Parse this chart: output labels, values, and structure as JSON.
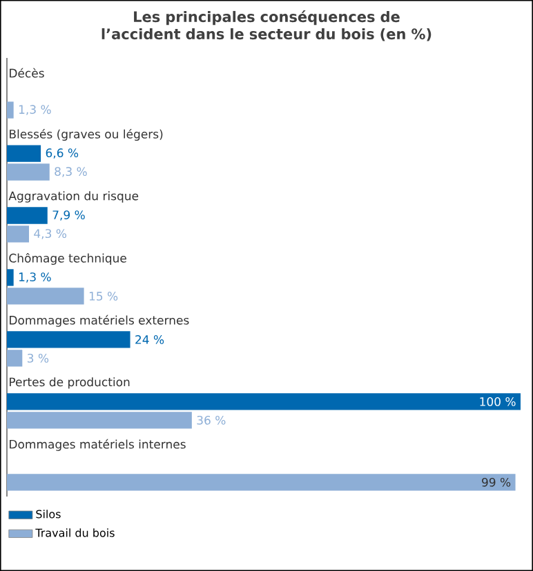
{
  "chart_data": {
    "type": "bar",
    "orientation": "horizontal",
    "title": "Les principales conséquences de l’accident dans le secteur du bois (en %)",
    "categories": [
      "Décès",
      "Blessés (graves ou légers)",
      "Aggravation du risque",
      "Chômage technique",
      "Dommages matériels externes",
      "Pertes de production",
      "Dommages matériels internes"
    ],
    "series": [
      {
        "name": "Silos",
        "color": "#0068b0",
        "values": [
          null,
          6.6,
          7.9,
          1.3,
          24,
          100,
          null
        ],
        "value_labels": [
          null,
          "6,6 %",
          "7,9 %",
          "1,3 %",
          "24 %",
          "100 %",
          null
        ]
      },
      {
        "name": "Travail du bois",
        "color": "#8daed6",
        "values": [
          1.3,
          8.3,
          4.3,
          15,
          3,
          36,
          99
        ],
        "value_labels": [
          "1,3 %",
          "8,3 %",
          "4,3 %",
          "15 %",
          "3 %",
          "36 %",
          "99 %"
        ]
      }
    ],
    "xlim": [
      0,
      100
    ],
    "legend": "bottom left"
  }
}
